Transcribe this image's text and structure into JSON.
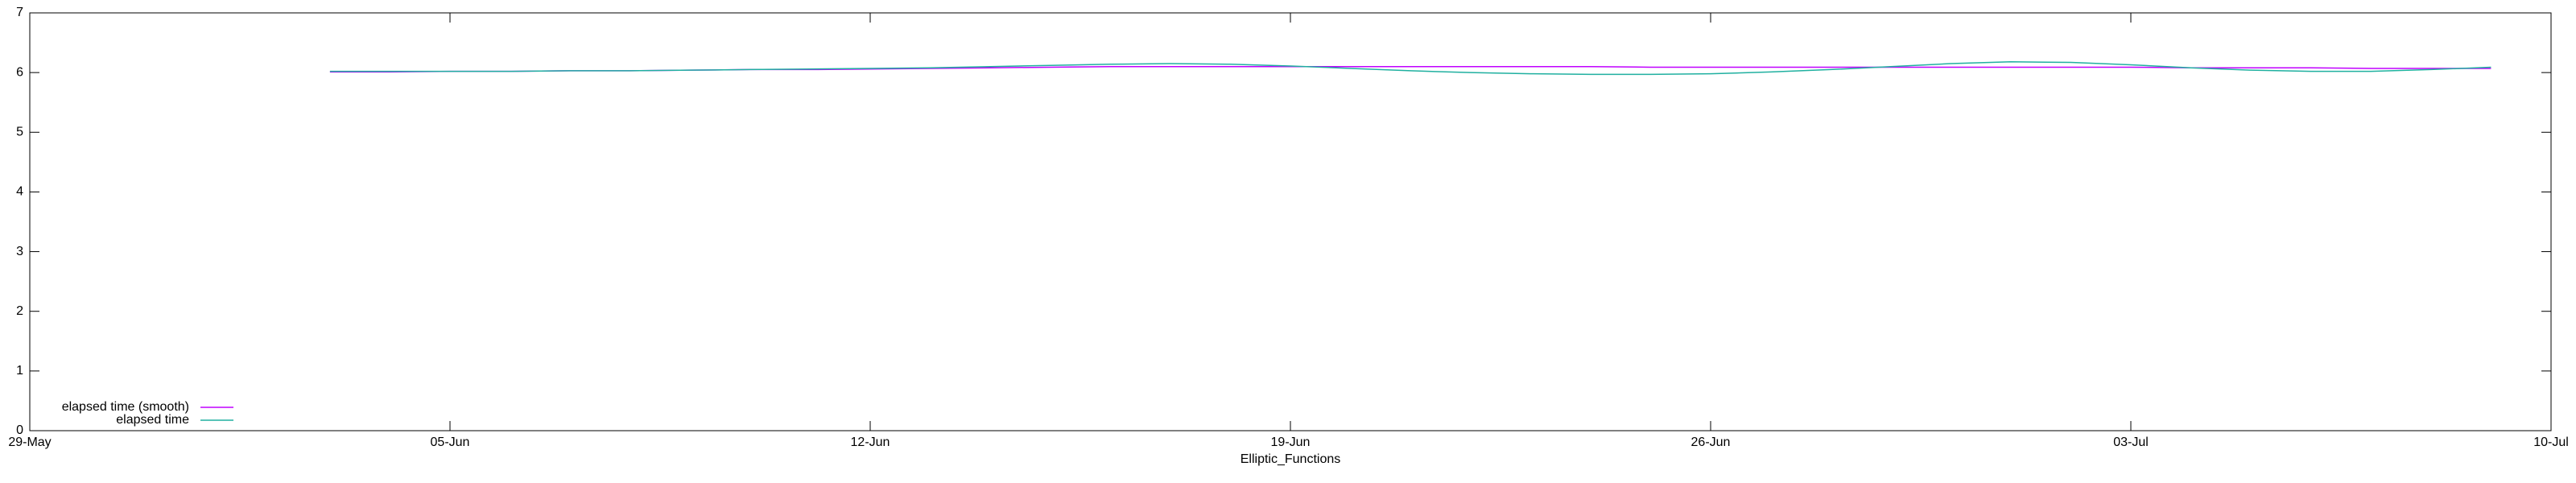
{
  "chart_data": {
    "type": "line",
    "xlabel": "Elliptic_Functions",
    "x": [
      5,
      6,
      7,
      8,
      9,
      10,
      11,
      12,
      13,
      14,
      15,
      16,
      17,
      18,
      19,
      20,
      21,
      22,
      23,
      24,
      25,
      26,
      27,
      28,
      29,
      30,
      31,
      32,
      33,
      34,
      35,
      36,
      37,
      38,
      39,
      40,
      41
    ],
    "series": [
      {
        "name": "elapsed time (smooth)",
        "color": "#c000ff",
        "values": [
          6.01,
          6.01,
          6.02,
          6.02,
          6.03,
          6.03,
          6.04,
          6.05,
          6.05,
          6.06,
          6.07,
          6.08,
          6.09,
          6.1,
          6.1,
          6.1,
          6.1,
          6.1,
          6.1,
          6.1,
          6.1,
          6.1,
          6.09,
          6.09,
          6.09,
          6.09,
          6.09,
          6.09,
          6.09,
          6.09,
          6.09,
          6.08,
          6.08,
          6.08,
          6.07,
          6.07,
          6.07
        ]
      },
      {
        "name": "elapsed time",
        "color": "#20b0a0",
        "values": [
          6.02,
          6.02,
          6.02,
          6.02,
          6.03,
          6.03,
          6.04,
          6.05,
          6.06,
          6.07,
          6.08,
          6.1,
          6.12,
          6.14,
          6.15,
          6.14,
          6.11,
          6.07,
          6.03,
          6.0,
          5.98,
          5.97,
          5.97,
          5.98,
          6.01,
          6.05,
          6.1,
          6.15,
          6.18,
          6.17,
          6.13,
          6.08,
          6.04,
          6.02,
          6.02,
          6.05,
          6.09
        ]
      }
    ],
    "xlim": [
      0,
      42
    ],
    "xticks": [
      {
        "value": 0,
        "label": "29-May"
      },
      {
        "value": 7,
        "label": "05-Jun"
      },
      {
        "value": 14,
        "label": "12-Jun"
      },
      {
        "value": 21,
        "label": "19-Jun"
      },
      {
        "value": 28,
        "label": "26-Jun"
      },
      {
        "value": 35,
        "label": "03-Jul"
      },
      {
        "value": 42,
        "label": "10-Jul"
      }
    ],
    "ylim": [
      0,
      7
    ],
    "yticks": [
      0,
      1,
      2,
      3,
      4,
      5,
      6,
      7
    ],
    "legend": "bottom-left",
    "grid": false
  }
}
